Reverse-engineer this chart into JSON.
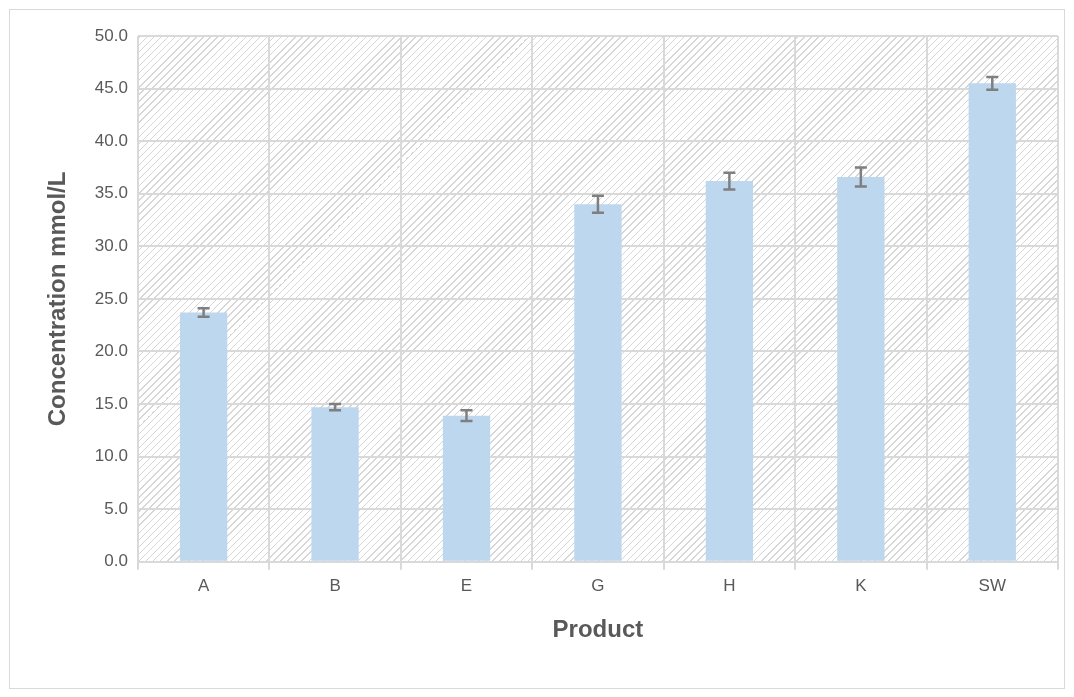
{
  "chart_data": {
    "type": "bar",
    "xlabel": "Product",
    "ylabel": "Concentration mmol/L",
    "categories": [
      "A",
      "B",
      "E",
      "G",
      "H",
      "K",
      "SW"
    ],
    "values": [
      23.7,
      14.7,
      13.9,
      34.0,
      36.2,
      36.6,
      45.5
    ],
    "errors": [
      0.4,
      0.3,
      0.5,
      0.8,
      0.8,
      0.9,
      0.6
    ],
    "color": "#bdd7ee",
    "ylim": [
      0,
      50
    ],
    "yticks": [
      {
        "value": 0,
        "label": "0.0"
      },
      {
        "value": 5,
        "label": "5.0"
      },
      {
        "value": 10,
        "label": "10.0"
      },
      {
        "value": 15,
        "label": "15.0"
      },
      {
        "value": 20,
        "label": "20.0"
      },
      {
        "value": 25,
        "label": "25.0"
      },
      {
        "value": 30,
        "label": "30.0"
      },
      {
        "value": 35,
        "label": "35.0"
      },
      {
        "value": 40,
        "label": "40.0"
      },
      {
        "value": 45,
        "label": "45.0"
      },
      {
        "value": 50,
        "label": "50.0"
      }
    ],
    "grid": true,
    "legend": false
  }
}
